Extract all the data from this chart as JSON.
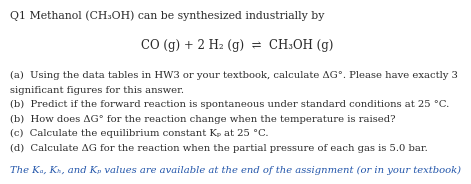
{
  "title_line": "Q1 Methanol (CH₃OH) can be synthesized industrially by",
  "equation": "CO (g) + 2 H₂ (g)  ⇌  CH₃OH (g)",
  "lines": [
    "(a)  Using the data tables in HW3 or your textbook, calculate ΔG°. Please have exactly 3",
    "significant figures for this answer.",
    "(b)  Predict if the forward reaction is spontaneous under standard conditions at 25 °C.",
    "(b)  How does ΔG° for the reaction change when the temperature is raised?",
    "(c)  Calculate the equilibrium constant Kₚ at 25 °C.",
    "(d)  Calculate ΔG for the reaction when the partial pressure of each gas is 5.0 bar."
  ],
  "footer": "The Kₐ, Kₕ, and Kₚ values are available at the end of the assignment (or in your textbook)",
  "bg_color": "#ffffff",
  "text_color": "#2a2a2a",
  "footer_color": "#2255aa",
  "title_fontsize": 7.8,
  "eq_fontsize": 8.5,
  "body_fontsize": 7.2,
  "footer_fontsize": 7.2
}
